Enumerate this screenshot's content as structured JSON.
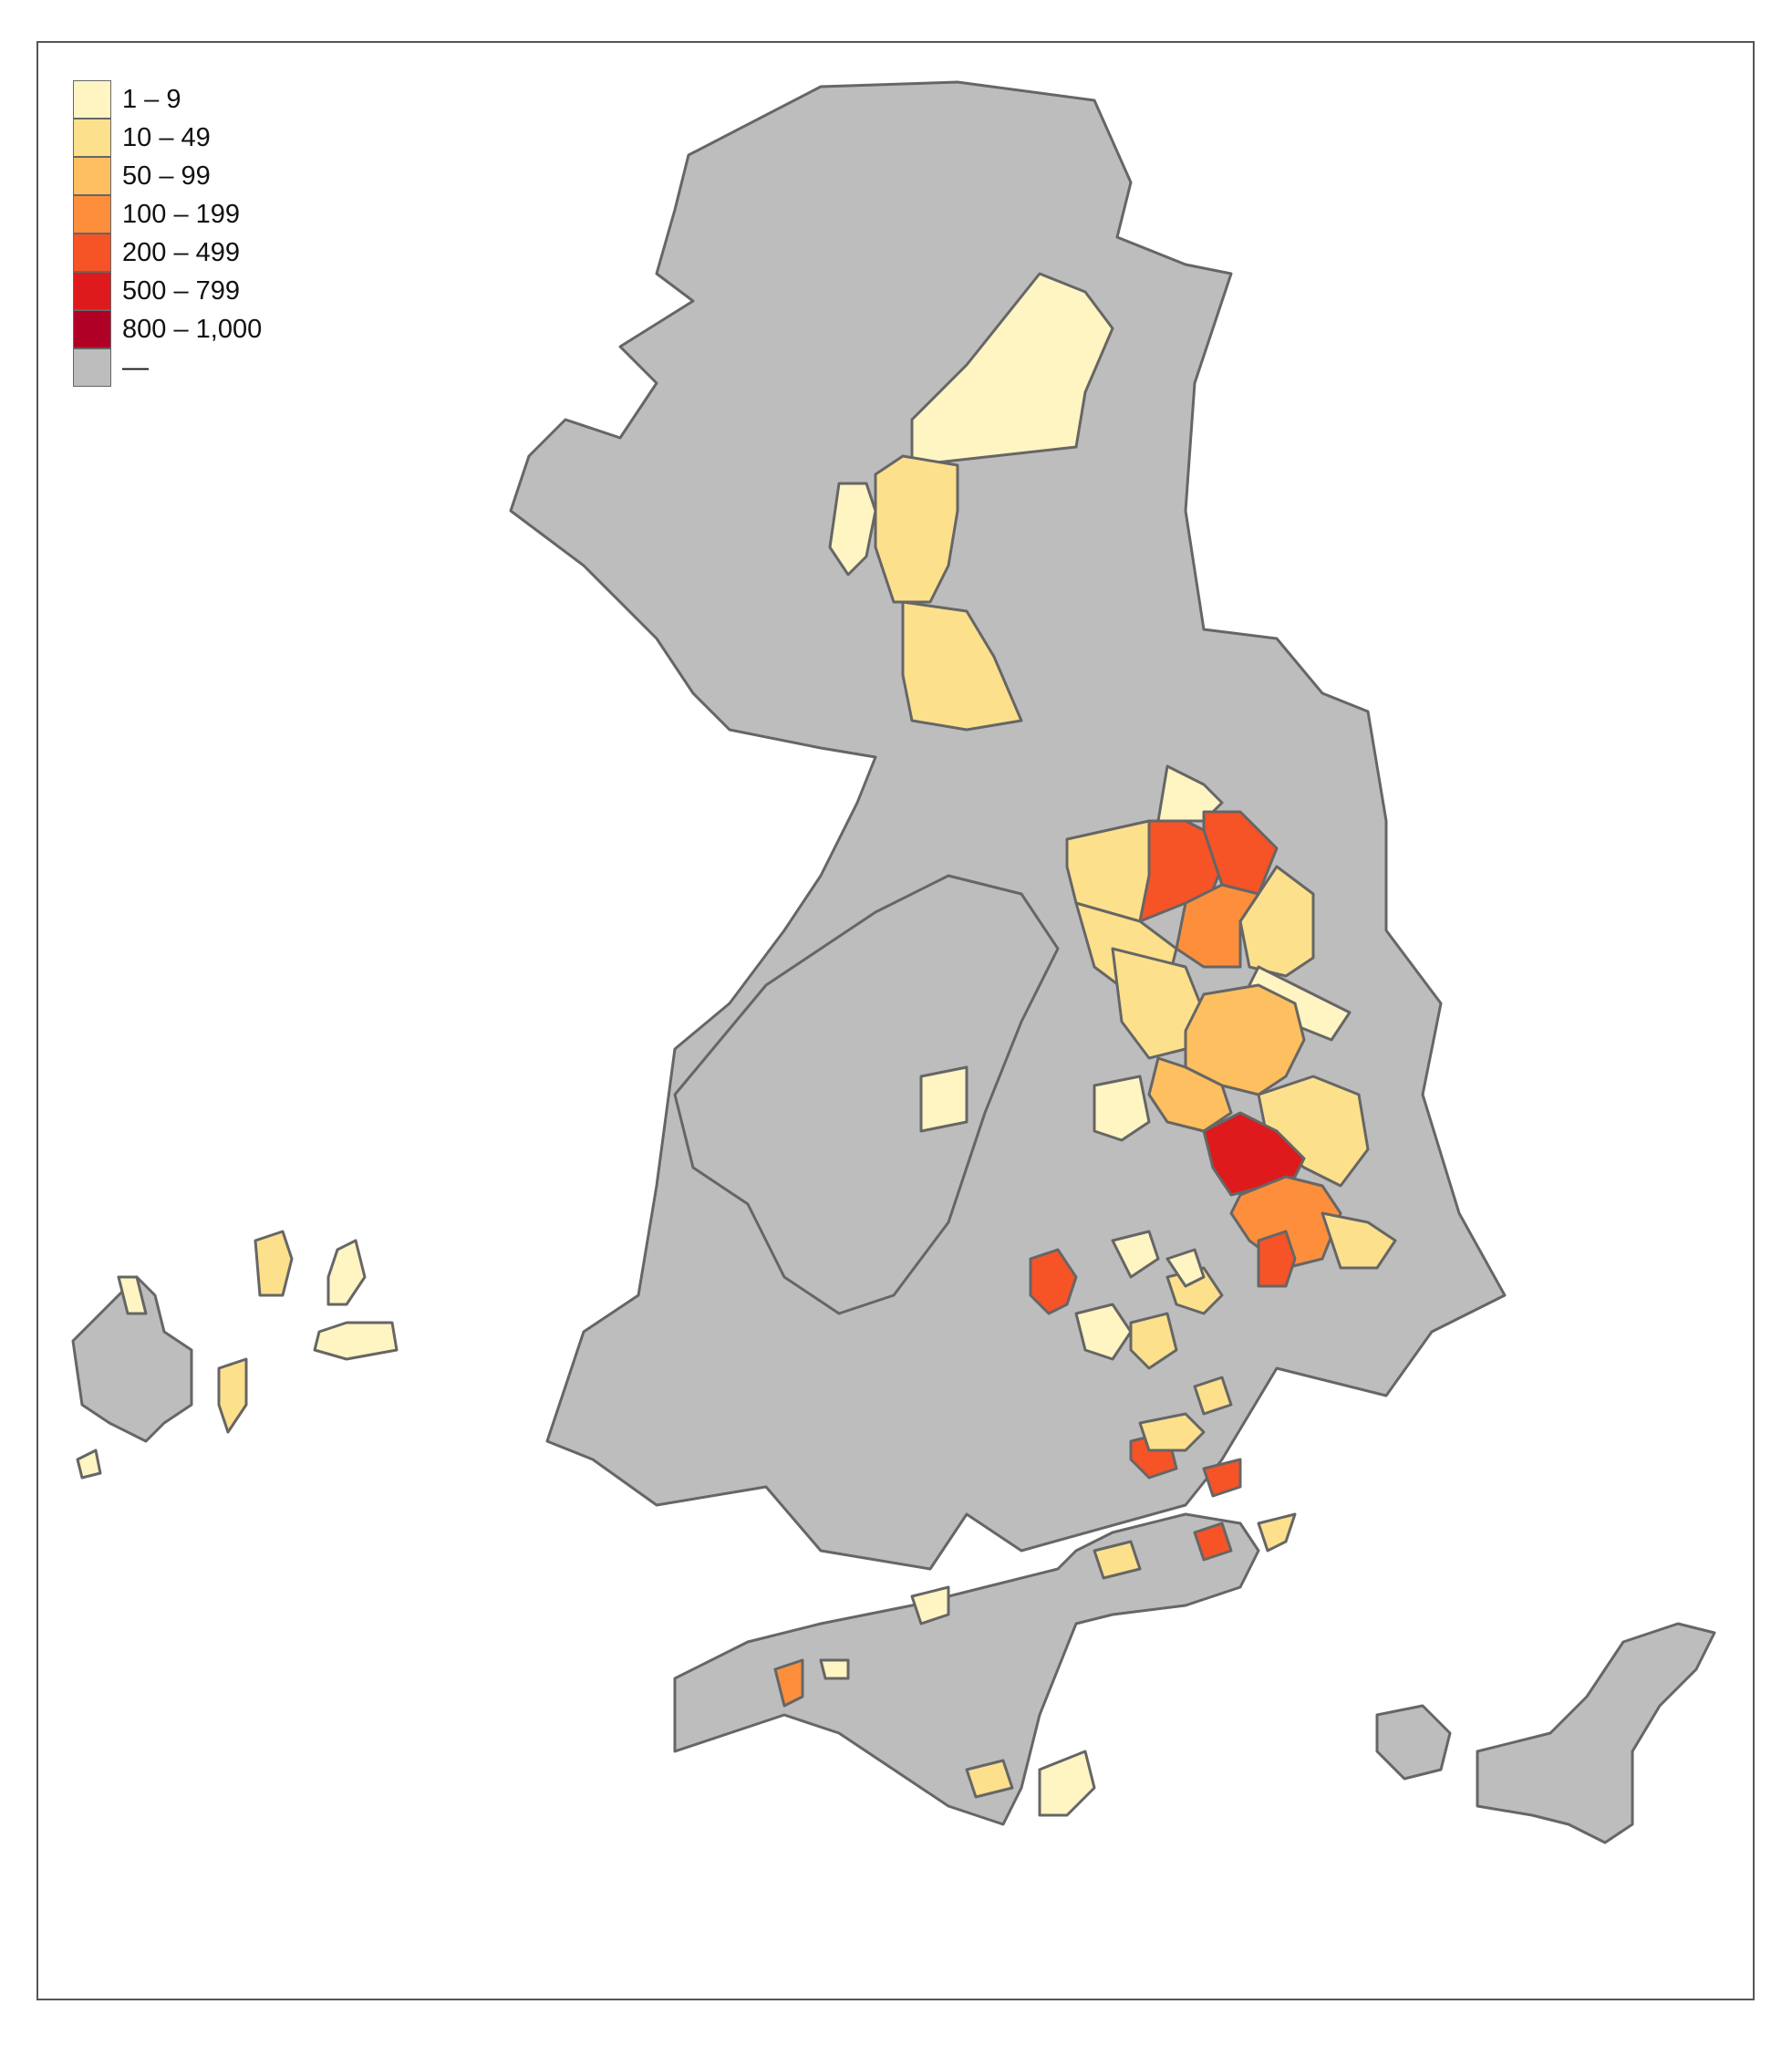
{
  "legend": {
    "items": [
      {
        "label": "1 – 9",
        "color": "#fff5c2"
      },
      {
        "label": "10 – 49",
        "color": "#fde08c"
      },
      {
        "label": "50 – 99",
        "color": "#fdbf5f"
      },
      {
        "label": "100 – 199",
        "color": "#fd8f3c"
      },
      {
        "label": "200 – 499",
        "color": "#f65327"
      },
      {
        "label": "500 – 799",
        "color": "#de1a1c"
      },
      {
        "label": "800 – 1,000",
        "color": "#b10026"
      },
      {
        "label": "—",
        "color": "#bdbdbd"
      }
    ]
  },
  "colors": {
    "no_data": "#bdbdbd",
    "border": "#666666",
    "frame": "#555555"
  }
}
